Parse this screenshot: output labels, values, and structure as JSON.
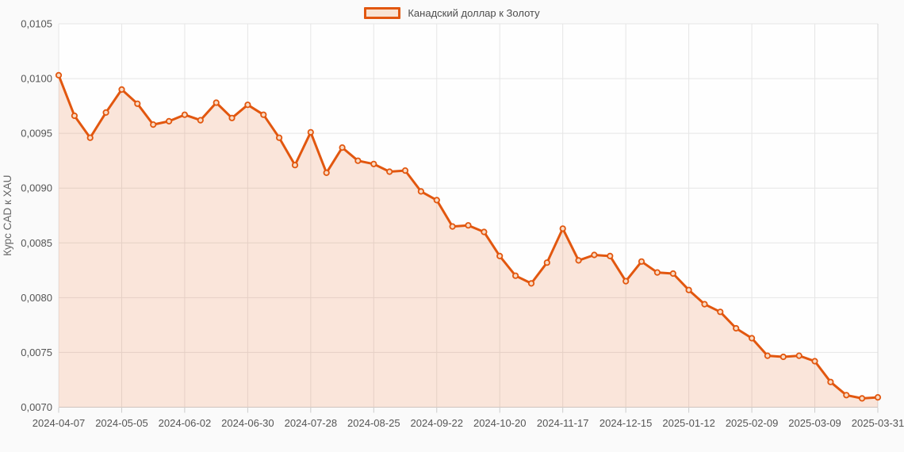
{
  "legend": {
    "label": "Канадский доллар к Золоту"
  },
  "y_axis": {
    "title": "Курс CAD к XAU",
    "ticks": [
      {
        "value": 0.007,
        "label": "0,0070"
      },
      {
        "value": 0.0075,
        "label": "0,0075"
      },
      {
        "value": 0.008,
        "label": "0,0080"
      },
      {
        "value": 0.0085,
        "label": "0,0085"
      },
      {
        "value": 0.009,
        "label": "0,0090"
      },
      {
        "value": 0.0095,
        "label": "0,0095"
      },
      {
        "value": 0.01,
        "label": "0,0100"
      },
      {
        "value": 0.0105,
        "label": "0,0105"
      }
    ]
  },
  "x_axis": {
    "ticks": [
      {
        "i": 0,
        "label": "2024-04-07"
      },
      {
        "i": 4,
        "label": "2024-05-05"
      },
      {
        "i": 8,
        "label": "2024-06-02"
      },
      {
        "i": 12,
        "label": "2024-06-30"
      },
      {
        "i": 16,
        "label": "2024-07-28"
      },
      {
        "i": 20,
        "label": "2024-08-25"
      },
      {
        "i": 24,
        "label": "2024-09-22"
      },
      {
        "i": 28,
        "label": "2024-10-20"
      },
      {
        "i": 32,
        "label": "2024-11-17"
      },
      {
        "i": 36,
        "label": "2024-12-15"
      },
      {
        "i": 40,
        "label": "2025-01-12"
      },
      {
        "i": 44,
        "label": "2025-02-09"
      },
      {
        "i": 48,
        "label": "2025-03-09"
      },
      {
        "i": 52,
        "label": "2025-03-31"
      }
    ]
  },
  "colors": {
    "line": "#e2570f",
    "marker_fill": "#f8dcc6",
    "area_fill": "rgba(226,87,15,0.15)",
    "grid": "#e6e6e6",
    "axis": "#cccccc",
    "border": "#d8d8d8",
    "tick_text": "#555555",
    "title_text": "#666666",
    "plot_background": "#fefefe"
  },
  "chart_data": {
    "type": "area",
    "title": "Канадский доллар к Золоту",
    "xlabel": "",
    "ylabel": "Курс CAD к XAU",
    "ylim": [
      0.007,
      0.0105
    ],
    "grid": true,
    "legend_position": "top",
    "x": [
      "2024-04-07",
      "2024-04-14",
      "2024-04-21",
      "2024-04-28",
      "2024-05-05",
      "2024-05-12",
      "2024-05-19",
      "2024-05-26",
      "2024-06-02",
      "2024-06-09",
      "2024-06-16",
      "2024-06-23",
      "2024-06-30",
      "2024-07-07",
      "2024-07-14",
      "2024-07-21",
      "2024-07-28",
      "2024-08-04",
      "2024-08-11",
      "2024-08-18",
      "2024-08-25",
      "2024-09-01",
      "2024-09-08",
      "2024-09-15",
      "2024-09-22",
      "2024-09-29",
      "2024-10-06",
      "2024-10-13",
      "2024-10-20",
      "2024-10-27",
      "2024-11-03",
      "2024-11-10",
      "2024-11-17",
      "2024-11-24",
      "2024-12-01",
      "2024-12-08",
      "2024-12-15",
      "2024-12-22",
      "2024-12-29",
      "2025-01-05",
      "2025-01-12",
      "2025-01-19",
      "2025-01-26",
      "2025-02-02",
      "2025-02-09",
      "2025-02-16",
      "2025-02-23",
      "2025-03-02",
      "2025-03-09",
      "2025-03-16",
      "2025-03-23",
      "2025-03-30",
      "2025-03-31"
    ],
    "values": [
      0.01003,
      0.00966,
      0.00946,
      0.00969,
      0.0099,
      0.00977,
      0.00958,
      0.00961,
      0.00967,
      0.00962,
      0.00978,
      0.00964,
      0.00976,
      0.00967,
      0.00946,
      0.00921,
      0.00951,
      0.00914,
      0.00937,
      0.00925,
      0.00922,
      0.00915,
      0.00916,
      0.00897,
      0.00889,
      0.00865,
      0.00866,
      0.0086,
      0.00838,
      0.0082,
      0.00813,
      0.00832,
      0.00863,
      0.00834,
      0.00839,
      0.00838,
      0.00815,
      0.00833,
      0.00823,
      0.00822,
      0.00807,
      0.00794,
      0.00787,
      0.00772,
      0.00763,
      0.00747,
      0.00746,
      0.00747,
      0.00742,
      0.00723,
      0.00711,
      0.00708,
      0.00709
    ]
  }
}
